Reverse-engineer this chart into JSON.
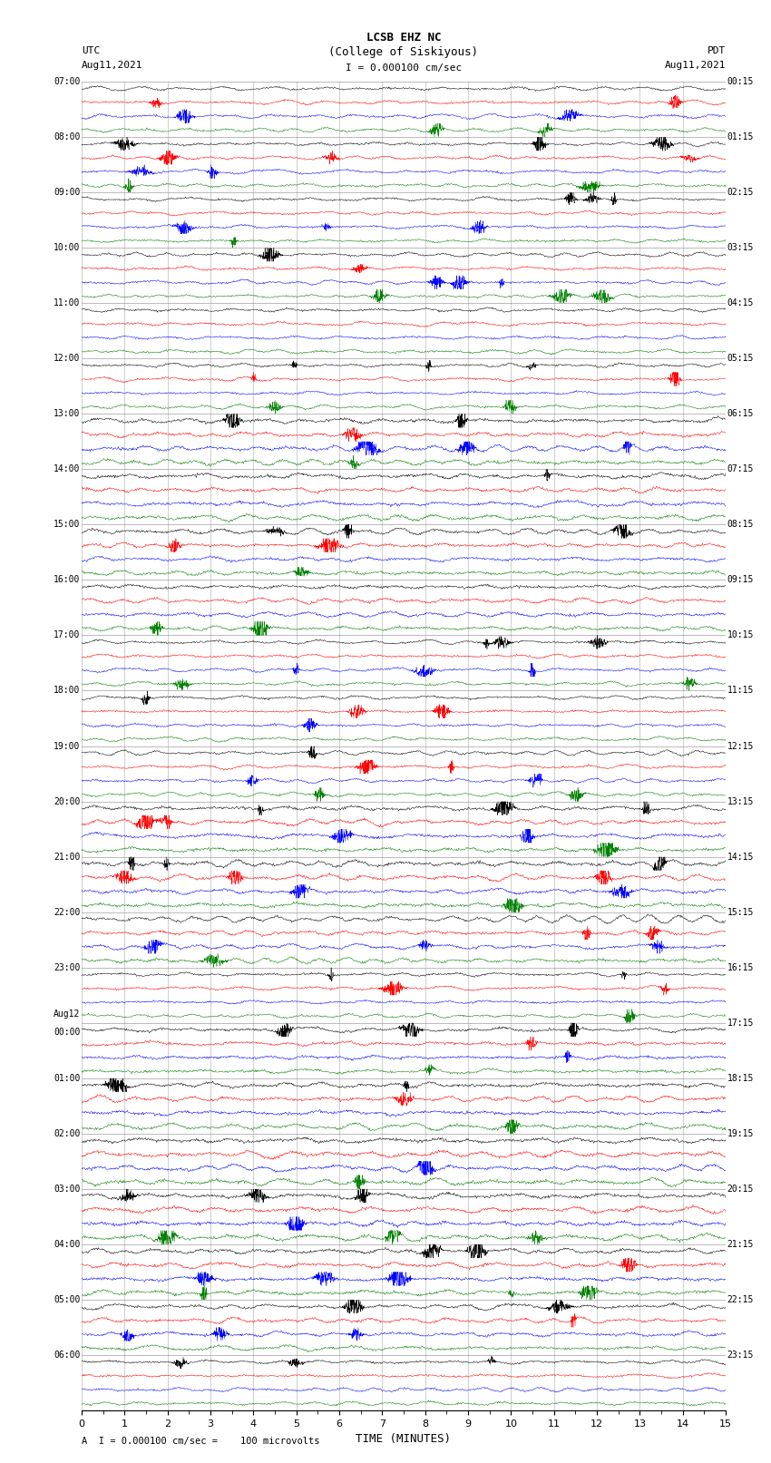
{
  "title_line1": "LCSB EHZ NC",
  "title_line2": "(College of Siskiyous)",
  "scale_label": "I = 0.000100 cm/sec",
  "bottom_label": "A  I = 0.000100 cm/sec =    100 microvolts",
  "utc_label_line1": "UTC",
  "utc_label_line2": "Aug11,2021",
  "pdt_label_line1": "PDT",
  "pdt_label_line2": "Aug11,2021",
  "xlabel": "TIME (MINUTES)",
  "left_times_utc": [
    "07:00",
    "08:00",
    "09:00",
    "10:00",
    "11:00",
    "12:00",
    "13:00",
    "14:00",
    "15:00",
    "16:00",
    "17:00",
    "18:00",
    "19:00",
    "20:00",
    "21:00",
    "22:00",
    "23:00",
    "Aug12\n00:00",
    "01:00",
    "02:00",
    "03:00",
    "04:00",
    "05:00",
    "06:00"
  ],
  "right_times_pdt": [
    "00:15",
    "01:15",
    "02:15",
    "03:15",
    "04:15",
    "05:15",
    "06:15",
    "07:15",
    "08:15",
    "09:15",
    "10:15",
    "11:15",
    "12:15",
    "13:15",
    "14:15",
    "15:15",
    "16:15",
    "17:15",
    "18:15",
    "19:15",
    "20:15",
    "21:15",
    "22:15",
    "23:15"
  ],
  "n_rows": 24,
  "traces_per_row": 4,
  "trace_colors": [
    "black",
    "red",
    "blue",
    "green"
  ],
  "background_color": "white",
  "minutes_per_row": 15,
  "fig_width": 8.5,
  "fig_height": 16.13,
  "noise_seed": 42
}
